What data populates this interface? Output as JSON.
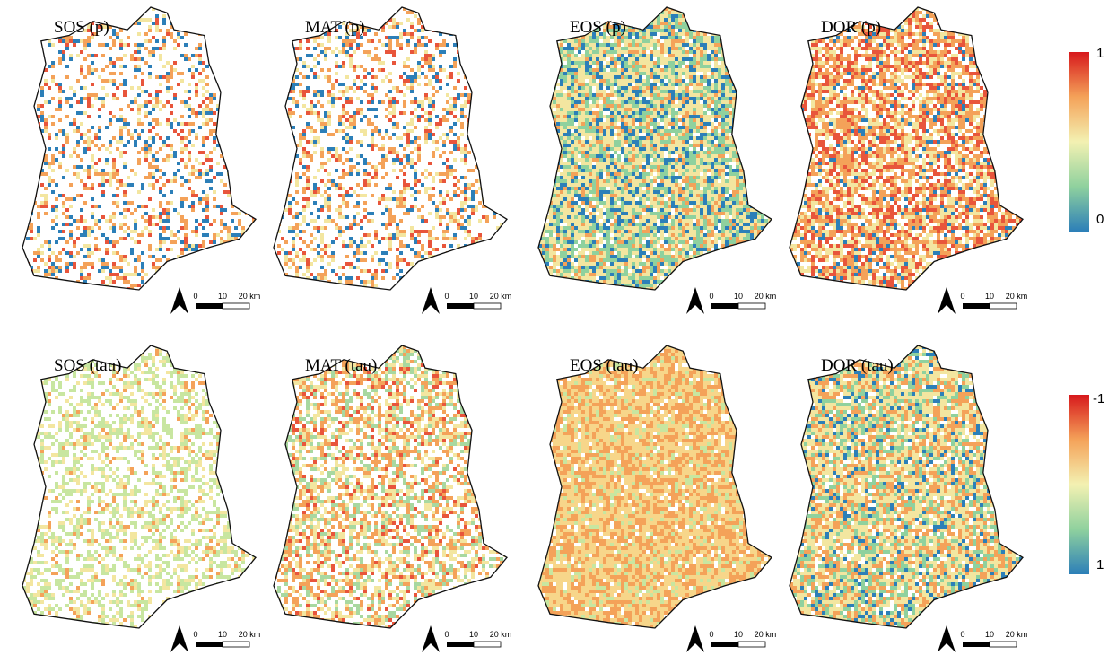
{
  "panels": [
    {
      "title": "SOS (p)",
      "scale": [
        "0",
        "10",
        "20 km"
      ]
    },
    {
      "title": "MAT (p)",
      "scale": [
        "0",
        "10",
        "20 km"
      ]
    },
    {
      "title": "EOS (p)",
      "scale": [
        "0",
        "10",
        "20 km"
      ]
    },
    {
      "title": "DOR (p)",
      "scale": [
        "0",
        "10",
        "20 km"
      ]
    },
    {
      "title": "SOS (tau)",
      "scale": [
        "0",
        "10",
        "20 km"
      ]
    },
    {
      "title": "MAT (tau)",
      "scale": [
        "0",
        "10",
        "20 km"
      ]
    },
    {
      "title": "EOS (tau)",
      "scale": [
        "0",
        "10",
        "20 km"
      ]
    },
    {
      "title": "DOR (tau)",
      "scale": [
        "0",
        "10",
        "20 km"
      ]
    }
  ],
  "colorbars": [
    {
      "top": "1",
      "bottom": "0"
    },
    {
      "top": "-1",
      "bottom": "1"
    }
  ]
}
